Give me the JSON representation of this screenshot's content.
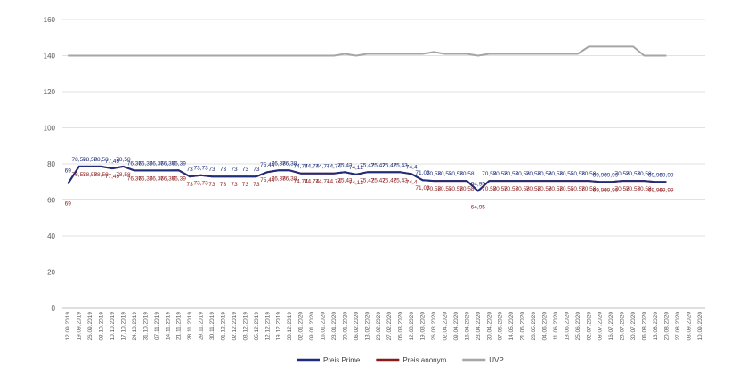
{
  "chart_data": {
    "type": "line",
    "title": "",
    "xlabel": "",
    "ylabel": "",
    "ylim": [
      0,
      160
    ],
    "yticks": [
      0,
      20,
      40,
      60,
      80,
      100,
      120,
      140,
      160
    ],
    "grid": true,
    "legend_position": "bottom",
    "categories": [
      "12.09.2019",
      "19.09.2019",
      "26.09.2019",
      "03.10.2019",
      "10.10.2019",
      "17.10.2019",
      "24.10.2019",
      "31.10.2019",
      "07.11.2019",
      "14.11.2019",
      "21.11.2019",
      "28.11.2019",
      "29.11.2019",
      "30.11.2019",
      "01.12.2019",
      "02.12.2019",
      "03.12.2019",
      "05.12.2019",
      "12.12.2019",
      "19.12.2019",
      "30.12.2019",
      "02.01.2020",
      "09.01.2020",
      "16.01.2020",
      "23.01.2020",
      "30.01.2020",
      "06.02.2020",
      "13.02.2020",
      "20.02.2020",
      "27.02.2020",
      "05.03.2020",
      "12.03.2020",
      "19.03.2020",
      "26.03.2020",
      "02.04.2020",
      "09.04.2020",
      "16.04.2020",
      "23.04.2020",
      "30.04.2020",
      "07.05.2020",
      "14.05.2020",
      "21.05.2020",
      "28.05.2020",
      "04.06.2020",
      "11.06.2020",
      "18.06.2020",
      "25.06.2020",
      "02.07.2020",
      "09.07.2020",
      "16.07.2020",
      "23.07.2020",
      "30.07.2020",
      "06.08.2020",
      "13.08.2020",
      "20.08.2020",
      "27.08.2020",
      "03.09.2020",
      "10.09.2020"
    ],
    "series": [
      {
        "name": "Preis Prime",
        "color": "#1f2d7a",
        "values": [
          69,
          78.58,
          78.58,
          78.58,
          77.49,
          78.58,
          76.36,
          76.36,
          76.36,
          76.36,
          76.39,
          73,
          73.73,
          73,
          73,
          73,
          73,
          73,
          75.44,
          76.38,
          76.38,
          74.74,
          74.74,
          74.74,
          74.74,
          75.42,
          74.12,
          75.42,
          75.42,
          75.42,
          75.43,
          74.4,
          71.03,
          70.58,
          70.58,
          70.58,
          70.58,
          64.95,
          70.58,
          70.58,
          70.58,
          70.58,
          70.58,
          70.58,
          70.58,
          70.58,
          70.58,
          70.58,
          69.99,
          69.99,
          70.58,
          70.58,
          70.58,
          69.99,
          69.99,
          null,
          null,
          null
        ],
        "labels": [
          "69",
          "78,58",
          "78,58",
          "78,58",
          "77,49",
          "78,58",
          "76,36",
          "76,36",
          "76,36",
          "76,36",
          "76,39",
          "73",
          "73,73",
          "73",
          "73",
          "73",
          "73",
          "73",
          "75,44",
          "76,38",
          "76,38",
          "74,74",
          "74,74",
          "74,74",
          "74,74",
          "75,42",
          "74,12",
          "75,42",
          "75,42",
          "75,42",
          "75,43",
          "74,4",
          "71,03",
          "70,58",
          "70,58",
          "70,58",
          "70,58",
          "64,95",
          "70,58",
          "70,58",
          "70,58",
          "70,58",
          "70,58",
          "70,58",
          "70,58",
          "70,58",
          "70,58",
          "70,58",
          "69,99",
          "69,99",
          "70,58",
          "70,58",
          "70,58",
          "69,99",
          "69,99",
          "",
          "",
          ""
        ]
      },
      {
        "name": "Preis anonym",
        "color": "#8b1a1a",
        "values": [
          69,
          78.58,
          78.58,
          78.58,
          77.49,
          78.58,
          76.36,
          76.36,
          76.36,
          76.36,
          76.39,
          73,
          73.73,
          73,
          73,
          73,
          73,
          73,
          75.44,
          76.38,
          76.38,
          74.74,
          74.74,
          74.74,
          74.74,
          75.42,
          74.12,
          75.42,
          75.42,
          75.42,
          75.43,
          74.4,
          71.03,
          70.58,
          70.58,
          70.58,
          70.58,
          64.95,
          70.58,
          70.58,
          70.58,
          70.58,
          70.58,
          70.58,
          70.58,
          70.58,
          70.58,
          70.58,
          69.99,
          69.99,
          70.58,
          70.58,
          70.58,
          69.99,
          69.99,
          null,
          null,
          null
        ],
        "labels": [
          "69",
          "78,58",
          "78,58",
          "78,58",
          "77,49",
          "78,58",
          "76,36",
          "76,36",
          "76,36",
          "76,36",
          "76,39",
          "73",
          "73,73",
          "73",
          "73",
          "73",
          "73",
          "73",
          "75,44",
          "76,38",
          "76,38",
          "74,74",
          "74,74",
          "74,74",
          "74,74",
          "75,42",
          "74,12",
          "75,42",
          "75,42",
          "75,42",
          "75,43",
          "74,4",
          "71,03",
          "70,58",
          "70,58",
          "70,58",
          "70,58",
          "64,95",
          "70,58",
          "70,58",
          "70,58",
          "70,58",
          "70,58",
          "70,58",
          "70,58",
          "70,58",
          "70,58",
          "70,58",
          "69,99",
          "69,99",
          "70,58",
          "70,58",
          "70,58",
          "69,99",
          "69,99",
          "",
          "",
          ""
        ]
      },
      {
        "name": "UVP",
        "color": "#a6a6a6",
        "values": [
          140,
          140,
          140,
          140,
          140,
          140,
          140,
          140,
          140,
          140,
          140,
          140,
          140,
          140,
          140,
          140,
          140,
          140,
          140,
          140,
          140,
          140,
          140,
          140,
          140,
          141,
          140,
          141,
          141,
          141,
          141,
          141,
          141,
          142,
          141,
          141,
          141,
          140,
          141,
          141,
          141,
          141,
          141,
          141,
          141,
          141,
          141,
          145,
          145,
          145,
          145,
          145,
          140,
          140,
          140,
          null,
          null,
          null
        ]
      }
    ]
  }
}
